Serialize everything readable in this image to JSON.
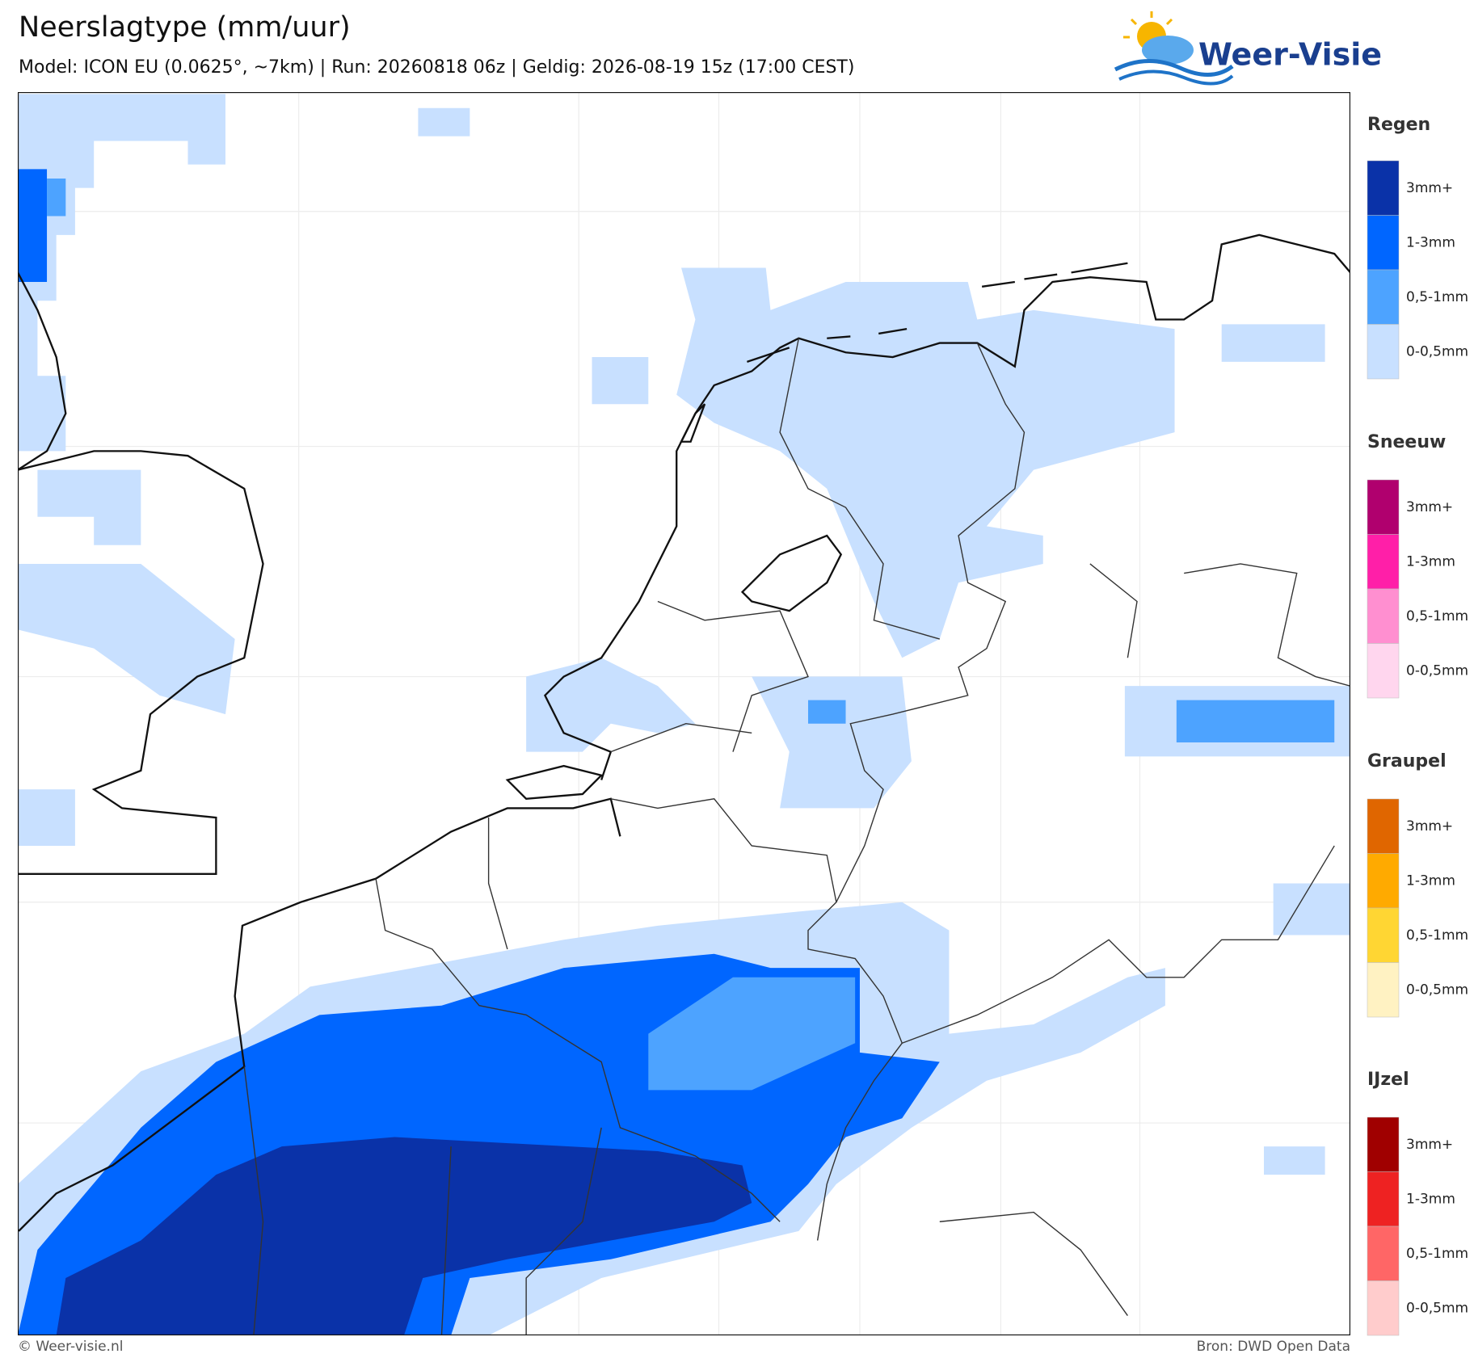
{
  "header": {
    "title": "Neerslagtype (mm/uur)",
    "subtitle": "Model: ICON EU (0.0625°, ~7km)  |  Run: 20260818 06z  |  Geldig: 2026-08-19 15z (17:00 CEST)",
    "logo": "Weer-Visie"
  },
  "legend": [
    {
      "title": "Regen",
      "items": [
        {
          "label": "3mm+",
          "color": "#0a32a8"
        },
        {
          "label": "1-3mm",
          "color": "#0066ff"
        },
        {
          "label": "0,5-1mm",
          "color": "#4da3ff"
        },
        {
          "label": "0-0,5mm",
          "color": "#c8e0ff"
        }
      ]
    },
    {
      "title": "Sneeuw",
      "items": [
        {
          "label": "3mm+",
          "color": "#b0006e"
        },
        {
          "label": "1-3mm",
          "color": "#ff1fa8"
        },
        {
          "label": "0,5-1mm",
          "color": "#ff8fd0"
        },
        {
          "label": "0-0,5mm",
          "color": "#ffd6ee"
        }
      ]
    },
    {
      "title": "Graupel",
      "items": [
        {
          "label": "3mm+",
          "color": "#e06600"
        },
        {
          "label": "1-3mm",
          "color": "#ffaa00"
        },
        {
          "label": "0,5-1mm",
          "color": "#ffd633"
        },
        {
          "label": "0-0,5mm",
          "color": "#fff2c2"
        }
      ]
    },
    {
      "title": "IJzel",
      "items": [
        {
          "label": "3mm+",
          "color": "#a00000"
        },
        {
          "label": "1-3mm",
          "color": "#ee2222"
        },
        {
          "label": "0,5-1mm",
          "color": "#ff6666"
        },
        {
          "label": "0-0,5mm",
          "color": "#ffcccc"
        }
      ]
    }
  ],
  "footer": {
    "left": "© Weer-visie.nl",
    "right": "Bron: DWD Open Data"
  }
}
